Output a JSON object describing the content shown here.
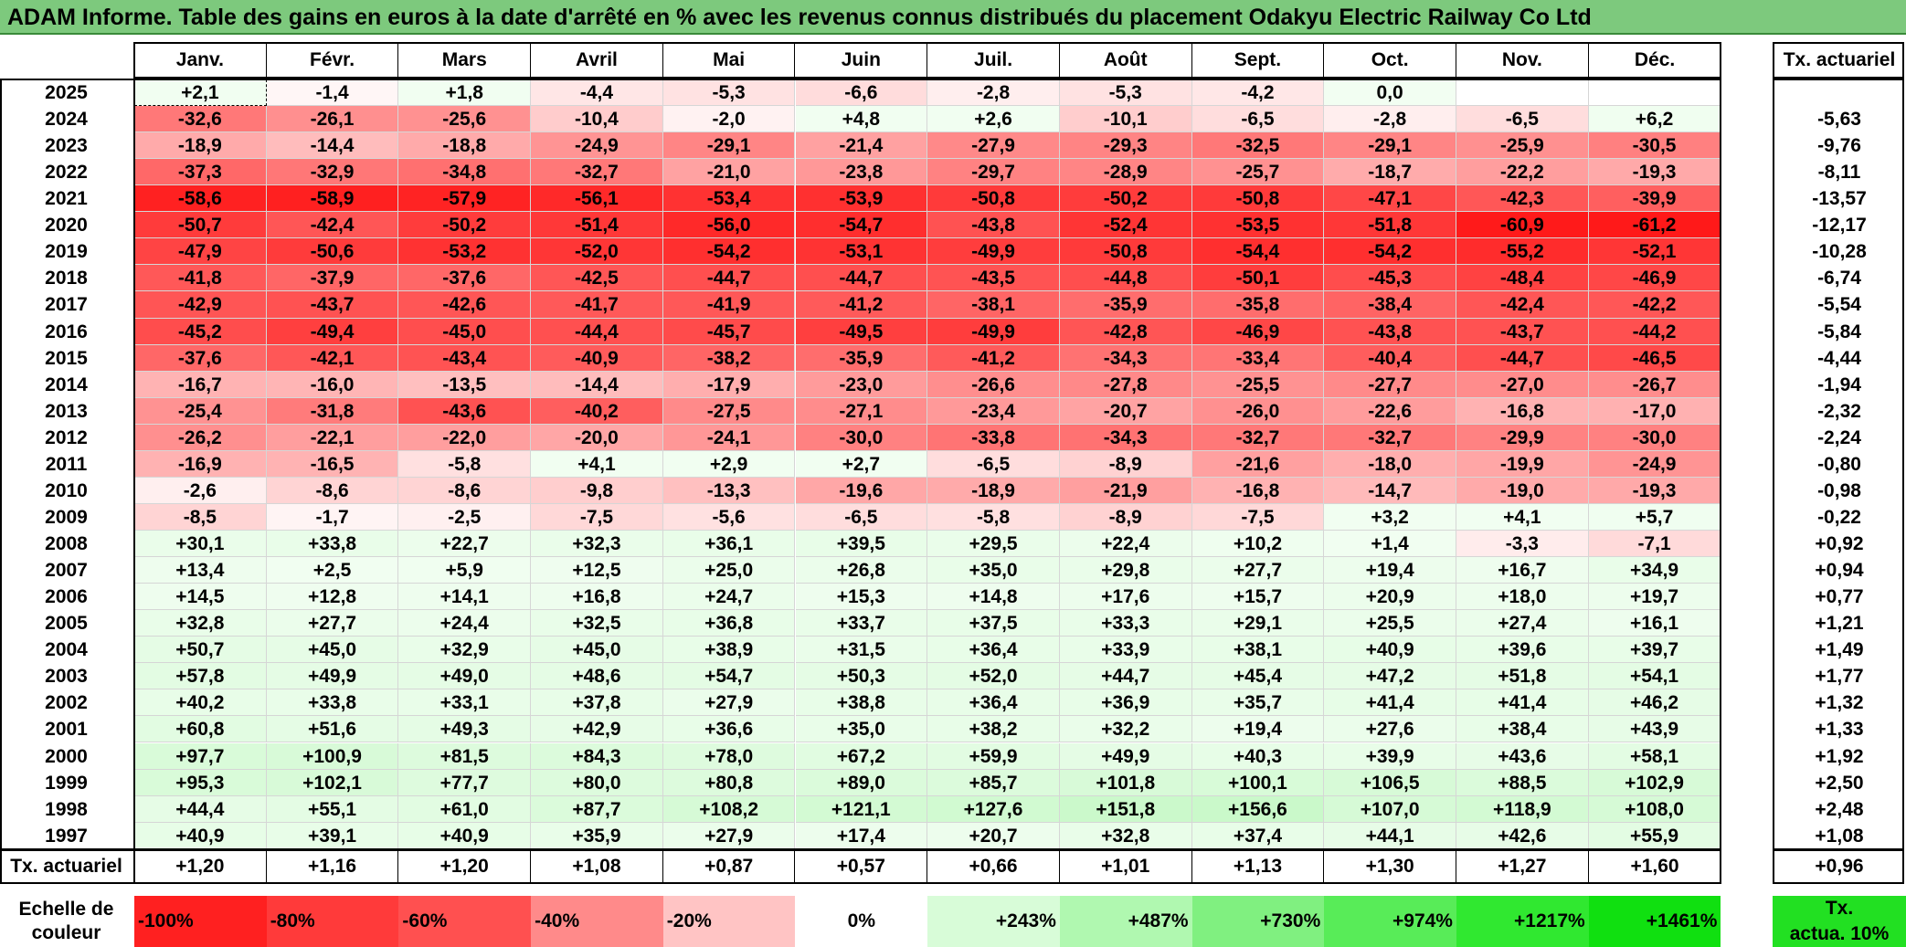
{
  "title": "ADAM Informe. Table des gains en euros à la date d'arrêté en % avec les revenus connus distribués du placement Odakyu Electric Railway Co Ltd",
  "chart_data": {
    "type": "table",
    "title": "ADAM Informe. Table des gains en euros à la date d'arrêté en % avec les revenus connus distribués du placement Odakyu Electric Railway Co Ltd",
    "columns": [
      "Janv.",
      "Févr.",
      "Mars",
      "Avril",
      "Mai",
      "Juin",
      "Juil.",
      "Août",
      "Sept.",
      "Oct.",
      "Nov.",
      "Déc."
    ],
    "rate_header": "Tx. actuariel",
    "rows": [
      {
        "year": "2025",
        "values": [
          "+2,1",
          "-1,4",
          "+1,8",
          "-4,4",
          "-5,3",
          "-6,6",
          "-2,8",
          "-5,3",
          "-4,2",
          "0,0",
          "",
          ""
        ],
        "rate": ""
      },
      {
        "year": "2024",
        "values": [
          "-32,6",
          "-26,1",
          "-25,6",
          "-10,4",
          "-2,0",
          "+4,8",
          "+2,6",
          "-10,1",
          "-6,5",
          "-2,8",
          "-6,5",
          "+6,2"
        ],
        "rate": "-5,63"
      },
      {
        "year": "2023",
        "values": [
          "-18,9",
          "-14,4",
          "-18,8",
          "-24,9",
          "-29,1",
          "-21,4",
          "-27,9",
          "-29,3",
          "-32,5",
          "-29,1",
          "-25,9",
          "-30,5"
        ],
        "rate": "-9,76"
      },
      {
        "year": "2022",
        "values": [
          "-37,3",
          "-32,9",
          "-34,8",
          "-32,7",
          "-21,0",
          "-23,8",
          "-29,7",
          "-28,9",
          "-25,7",
          "-18,7",
          "-22,2",
          "-19,3"
        ],
        "rate": "-8,11"
      },
      {
        "year": "2021",
        "values": [
          "-58,6",
          "-58,9",
          "-57,9",
          "-56,1",
          "-53,4",
          "-53,9",
          "-50,8",
          "-50,2",
          "-50,8",
          "-47,1",
          "-42,3",
          "-39,9"
        ],
        "rate": "-13,57"
      },
      {
        "year": "2020",
        "values": [
          "-50,7",
          "-42,4",
          "-50,2",
          "-51,4",
          "-56,0",
          "-54,7",
          "-43,8",
          "-52,4",
          "-53,5",
          "-51,8",
          "-60,9",
          "-61,2"
        ],
        "rate": "-12,17"
      },
      {
        "year": "2019",
        "values": [
          "-47,9",
          "-50,6",
          "-53,2",
          "-52,0",
          "-54,2",
          "-53,1",
          "-49,9",
          "-50,8",
          "-54,4",
          "-54,2",
          "-55,2",
          "-52,1"
        ],
        "rate": "-10,28"
      },
      {
        "year": "2018",
        "values": [
          "-41,8",
          "-37,9",
          "-37,6",
          "-42,5",
          "-44,7",
          "-44,7",
          "-43,5",
          "-44,8",
          "-50,1",
          "-45,3",
          "-48,4",
          "-46,9"
        ],
        "rate": "-6,74"
      },
      {
        "year": "2017",
        "values": [
          "-42,9",
          "-43,7",
          "-42,6",
          "-41,7",
          "-41,9",
          "-41,2",
          "-38,1",
          "-35,9",
          "-35,8",
          "-38,4",
          "-42,4",
          "-42,2"
        ],
        "rate": "-5,54"
      },
      {
        "year": "2016",
        "values": [
          "-45,2",
          "-49,4",
          "-45,0",
          "-44,4",
          "-45,7",
          "-49,5",
          "-49,9",
          "-42,8",
          "-46,9",
          "-43,8",
          "-43,7",
          "-44,2"
        ],
        "rate": "-5,84"
      },
      {
        "year": "2015",
        "values": [
          "-37,6",
          "-42,1",
          "-43,4",
          "-40,9",
          "-38,2",
          "-35,9",
          "-41,2",
          "-34,3",
          "-33,4",
          "-40,4",
          "-44,7",
          "-46,5"
        ],
        "rate": "-4,44"
      },
      {
        "year": "2014",
        "values": [
          "-16,7",
          "-16,0",
          "-13,5",
          "-14,4",
          "-17,9",
          "-23,0",
          "-26,6",
          "-27,8",
          "-25,5",
          "-27,7",
          "-27,0",
          "-26,7"
        ],
        "rate": "-1,94"
      },
      {
        "year": "2013",
        "values": [
          "-25,4",
          "-31,8",
          "-43,6",
          "-40,2",
          "-27,5",
          "-27,1",
          "-23,4",
          "-20,7",
          "-26,0",
          "-22,6",
          "-16,8",
          "-17,0"
        ],
        "rate": "-2,32"
      },
      {
        "year": "2012",
        "values": [
          "-26,2",
          "-22,1",
          "-22,0",
          "-20,0",
          "-24,1",
          "-30,0",
          "-33,8",
          "-34,3",
          "-32,7",
          "-32,7",
          "-29,9",
          "-30,0"
        ],
        "rate": "-2,24"
      },
      {
        "year": "2011",
        "values": [
          "-16,9",
          "-16,5",
          "-5,8",
          "+4,1",
          "+2,9",
          "+2,7",
          "-6,5",
          "-8,9",
          "-21,6",
          "-18,0",
          "-19,9",
          "-24,9"
        ],
        "rate": "-0,80"
      },
      {
        "year": "2010",
        "values": [
          "-2,6",
          "-8,6",
          "-8,6",
          "-9,8",
          "-13,3",
          "-19,6",
          "-18,9",
          "-21,9",
          "-16,8",
          "-14,7",
          "-19,0",
          "-19,3"
        ],
        "rate": "-0,98"
      },
      {
        "year": "2009",
        "values": [
          "-8,5",
          "-1,7",
          "-2,5",
          "-7,5",
          "-5,6",
          "-6,5",
          "-5,8",
          "-8,9",
          "-7,5",
          "+3,2",
          "+4,1",
          "+5,7"
        ],
        "rate": "-0,22"
      },
      {
        "year": "2008",
        "values": [
          "+30,1",
          "+33,8",
          "+22,7",
          "+32,3",
          "+36,1",
          "+39,5",
          "+29,5",
          "+22,4",
          "+10,2",
          "+1,4",
          "-3,3",
          "-7,1"
        ],
        "rate": "+0,92"
      },
      {
        "year": "2007",
        "values": [
          "+13,4",
          "+2,5",
          "+5,9",
          "+12,5",
          "+25,0",
          "+26,8",
          "+35,0",
          "+29,8",
          "+27,7",
          "+19,4",
          "+16,7",
          "+34,9"
        ],
        "rate": "+0,94"
      },
      {
        "year": "2006",
        "values": [
          "+14,5",
          "+12,8",
          "+14,1",
          "+16,8",
          "+24,7",
          "+15,3",
          "+14,8",
          "+17,6",
          "+15,7",
          "+20,9",
          "+18,0",
          "+19,7"
        ],
        "rate": "+0,77"
      },
      {
        "year": "2005",
        "values": [
          "+32,8",
          "+27,7",
          "+24,4",
          "+32,5",
          "+36,8",
          "+33,7",
          "+37,5",
          "+33,3",
          "+29,1",
          "+25,5",
          "+27,4",
          "+16,1"
        ],
        "rate": "+1,21"
      },
      {
        "year": "2004",
        "values": [
          "+50,7",
          "+45,0",
          "+32,9",
          "+45,0",
          "+38,9",
          "+31,5",
          "+36,4",
          "+33,9",
          "+38,1",
          "+40,9",
          "+39,6",
          "+39,7"
        ],
        "rate": "+1,49"
      },
      {
        "year": "2003",
        "values": [
          "+57,8",
          "+49,9",
          "+49,0",
          "+48,6",
          "+54,7",
          "+50,3",
          "+52,0",
          "+44,7",
          "+45,4",
          "+47,2",
          "+51,8",
          "+54,1"
        ],
        "rate": "+1,77"
      },
      {
        "year": "2002",
        "values": [
          "+40,2",
          "+33,8",
          "+33,1",
          "+37,8",
          "+27,9",
          "+38,8",
          "+36,4",
          "+36,9",
          "+35,7",
          "+41,4",
          "+41,4",
          "+46,2"
        ],
        "rate": "+1,32"
      },
      {
        "year": "2001",
        "values": [
          "+60,8",
          "+51,6",
          "+49,3",
          "+42,9",
          "+36,6",
          "+35,0",
          "+38,2",
          "+32,2",
          "+19,4",
          "+27,6",
          "+38,4",
          "+43,9"
        ],
        "rate": "+1,33"
      },
      {
        "year": "2000",
        "values": [
          "+97,7",
          "+100,9",
          "+81,5",
          "+84,3",
          "+78,0",
          "+67,2",
          "+59,9",
          "+49,9",
          "+40,3",
          "+39,9",
          "+43,6",
          "+58,1"
        ],
        "rate": "+1,92"
      },
      {
        "year": "1999",
        "values": [
          "+95,3",
          "+102,1",
          "+77,7",
          "+80,0",
          "+80,8",
          "+89,0",
          "+85,7",
          "+101,8",
          "+100,1",
          "+106,5",
          "+88,5",
          "+102,9"
        ],
        "rate": "+2,50"
      },
      {
        "year": "1998",
        "values": [
          "+44,4",
          "+55,1",
          "+61,0",
          "+87,7",
          "+108,2",
          "+121,1",
          "+127,6",
          "+151,8",
          "+156,6",
          "+107,0",
          "+118,9",
          "+108,0"
        ],
        "rate": "+2,48"
      },
      {
        "year": "1997",
        "values": [
          "+40,9",
          "+39,1",
          "+40,9",
          "+35,9",
          "+27,9",
          "+17,4",
          "+20,7",
          "+32,8",
          "+37,4",
          "+44,1",
          "+42,6",
          "+55,9"
        ],
        "rate": "+1,08"
      }
    ],
    "footer": {
      "label": "Tx. actuariel",
      "values": [
        "+1,20",
        "+1,16",
        "+1,20",
        "+1,08",
        "+0,87",
        "+0,57",
        "+0,66",
        "+1,01",
        "+1,13",
        "+1,30",
        "+1,27",
        "+1,60"
      ],
      "rate": "+0,96"
    },
    "scale": {
      "label_line1": "Echelle de",
      "label_line2": "couleur",
      "items": [
        {
          "text": "-100%",
          "color": "#ff2020"
        },
        {
          "text": "-80%",
          "color": "#ff3a3a"
        },
        {
          "text": "-60%",
          "color": "#ff5050"
        },
        {
          "text": "-40%",
          "color": "#ff8a8a"
        },
        {
          "text": "-20%",
          "color": "#ffc4c4"
        },
        {
          "text": "0%",
          "color": "#ffffff"
        },
        {
          "text": "+243%",
          "color": "#d8fcd8"
        },
        {
          "text": "+487%",
          "color": "#b0f8b0"
        },
        {
          "text": "+730%",
          "color": "#80f080"
        },
        {
          "text": "+974%",
          "color": "#58ec58"
        },
        {
          "text": "+1217%",
          "color": "#30e830"
        },
        {
          "text": "+1461%",
          "color": "#10e010"
        }
      ],
      "rate_line1": "Tx.",
      "rate_line2": "actua. 10%",
      "rate_color": "#22e022"
    }
  }
}
